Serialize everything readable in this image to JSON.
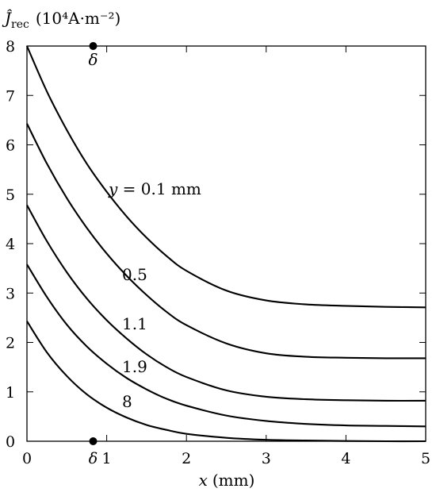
{
  "chart_data": {
    "type": "line",
    "title": "",
    "ylabel_symbol": "Ĵ",
    "ylabel_subscript": "rec",
    "ylabel_units": "(10⁴A·m⁻²)",
    "xlabel_var": "x",
    "xlabel_units": "(mm)",
    "xlim": [
      0,
      5
    ],
    "ylim": [
      0,
      8
    ],
    "x_ticks": [
      0,
      1,
      2,
      3,
      4,
      5
    ],
    "y_ticks": [
      0,
      1,
      2,
      3,
      4,
      5,
      6,
      7,
      8
    ],
    "grid": false,
    "delta": {
      "label": "δ",
      "x": 0.83,
      "markers_y": [
        0,
        8
      ]
    },
    "series": [
      {
        "name": "y = 0.1 mm",
        "label_prefix": "y",
        "label_suffix": " = 0.1 mm",
        "x": [
          0,
          0.25,
          0.5,
          0.75,
          1,
          1.25,
          1.5,
          1.75,
          2,
          2.5,
          3,
          3.5,
          4,
          4.5,
          5
        ],
        "y": [
          8.0,
          7.08,
          6.3,
          5.62,
          5.05,
          4.55,
          4.12,
          3.75,
          3.45,
          3.05,
          2.85,
          2.77,
          2.74,
          2.72,
          2.71
        ]
      },
      {
        "name": "0.5",
        "x": [
          0,
          0.25,
          0.5,
          0.75,
          1,
          1.25,
          1.5,
          1.75,
          2,
          2.5,
          3,
          3.5,
          4,
          4.5,
          5
        ],
        "y": [
          6.43,
          5.62,
          4.92,
          4.32,
          3.8,
          3.35,
          2.96,
          2.62,
          2.35,
          1.98,
          1.78,
          1.71,
          1.69,
          1.68,
          1.68
        ]
      },
      {
        "name": "1.1",
        "x": [
          0,
          0.25,
          0.5,
          0.75,
          1,
          1.25,
          1.5,
          1.75,
          2,
          2.5,
          3,
          3.5,
          4,
          4.5,
          5
        ],
        "y": [
          4.78,
          4.05,
          3.42,
          2.89,
          2.45,
          2.08,
          1.76,
          1.5,
          1.3,
          1.03,
          0.9,
          0.85,
          0.83,
          0.82,
          0.82
        ]
      },
      {
        "name": "1.9",
        "x": [
          0,
          0.25,
          0.5,
          0.75,
          1,
          1.25,
          1.5,
          1.75,
          2,
          2.5,
          3,
          3.5,
          4,
          4.5,
          5
        ],
        "y": [
          3.58,
          2.92,
          2.36,
          1.92,
          1.57,
          1.28,
          1.05,
          0.86,
          0.72,
          0.52,
          0.41,
          0.35,
          0.32,
          0.31,
          0.3
        ]
      },
      {
        "name": "8",
        "x": [
          0,
          0.25,
          0.5,
          0.75,
          1,
          1.25,
          1.5,
          1.75,
          2,
          2.5,
          3,
          3.5,
          4,
          4.5,
          5
        ],
        "y": [
          2.43,
          1.8,
          1.32,
          0.95,
          0.68,
          0.48,
          0.33,
          0.23,
          0.15,
          0.07,
          0.03,
          0.015,
          0.005,
          0.0,
          0.0
        ]
      }
    ]
  }
}
